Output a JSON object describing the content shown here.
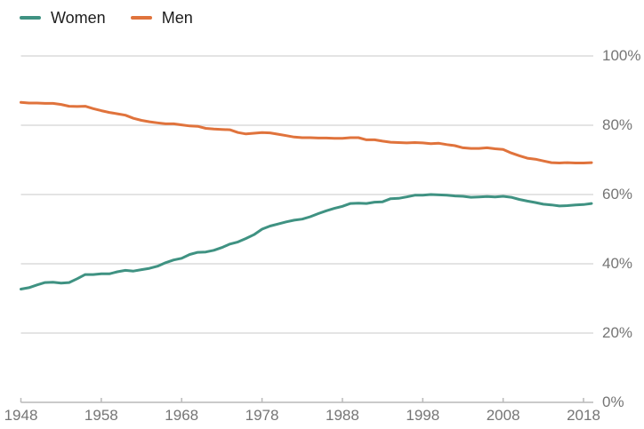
{
  "legend": {
    "items": [
      {
        "label": "Women",
        "swatch": "teal-line-swatch"
      },
      {
        "label": "Men",
        "swatch": "orange-line-swatch"
      }
    ]
  },
  "colors": {
    "women": "#3f9282",
    "men": "#e0733c",
    "gridline": "#dcdcdc",
    "axis": "#b9b9b9",
    "tick_label": "#757575",
    "legend_text": "#1d1d1d",
    "background": "#ffffff"
  },
  "chart_data": {
    "type": "line",
    "title": "",
    "xlabel": "",
    "ylabel": "",
    "grid": "horizontal",
    "legend_position": "top-left",
    "ylim": [
      0,
      100
    ],
    "xlim": [
      1948,
      2019
    ],
    "yticks": [
      "100%",
      "80%",
      "60%",
      "40%",
      "20%",
      "0%"
    ],
    "ytick_values": [
      100,
      80,
      60,
      40,
      20,
      0
    ],
    "xticks": [
      "1948",
      "1958",
      "1968",
      "1978",
      "1988",
      "1998",
      "2008",
      "2018"
    ],
    "xtick_values": [
      1948,
      1958,
      1968,
      1978,
      1988,
      1998,
      2008,
      2018
    ],
    "x": [
      1948,
      1949,
      1950,
      1951,
      1952,
      1953,
      1954,
      1955,
      1956,
      1957,
      1958,
      1959,
      1960,
      1961,
      1962,
      1963,
      1964,
      1965,
      1966,
      1967,
      1968,
      1969,
      1970,
      1971,
      1972,
      1973,
      1974,
      1975,
      1976,
      1977,
      1978,
      1979,
      1980,
      1981,
      1982,
      1983,
      1984,
      1985,
      1986,
      1987,
      1988,
      1989,
      1990,
      1991,
      1992,
      1993,
      1994,
      1995,
      1996,
      1997,
      1998,
      1999,
      2000,
      2001,
      2002,
      2003,
      2004,
      2005,
      2006,
      2007,
      2008,
      2009,
      2010,
      2011,
      2012,
      2013,
      2014,
      2015,
      2016,
      2017,
      2018,
      2019
    ],
    "series": [
      {
        "name": "Women",
        "color": "#3f9282",
        "values": [
          32.7,
          33.1,
          33.9,
          34.6,
          34.7,
          34.4,
          34.6,
          35.7,
          36.9,
          36.9,
          37.1,
          37.1,
          37.7,
          38.1,
          37.9,
          38.3,
          38.7,
          39.3,
          40.3,
          41.1,
          41.6,
          42.7,
          43.3,
          43.4,
          43.9,
          44.7,
          45.7,
          46.3,
          47.3,
          48.4,
          50.0,
          50.9,
          51.5,
          52.1,
          52.6,
          52.9,
          53.6,
          54.5,
          55.3,
          56.0,
          56.6,
          57.4,
          57.5,
          57.4,
          57.8,
          57.9,
          58.8,
          58.9,
          59.3,
          59.8,
          59.8,
          60.0,
          59.9,
          59.8,
          59.6,
          59.5,
          59.2,
          59.3,
          59.4,
          59.3,
          59.5,
          59.2,
          58.6,
          58.1,
          57.7,
          57.2,
          57.0,
          56.7,
          56.8,
          57.0,
          57.1,
          57.4
        ]
      },
      {
        "name": "Men",
        "color": "#e0733c",
        "values": [
          86.6,
          86.4,
          86.4,
          86.3,
          86.3,
          86.0,
          85.5,
          85.4,
          85.5,
          84.8,
          84.2,
          83.7,
          83.3,
          82.9,
          82.0,
          81.4,
          81.0,
          80.7,
          80.4,
          80.4,
          80.1,
          79.8,
          79.7,
          79.1,
          78.9,
          78.8,
          78.7,
          77.9,
          77.5,
          77.7,
          77.9,
          77.8,
          77.4,
          77.0,
          76.6,
          76.4,
          76.4,
          76.3,
          76.3,
          76.2,
          76.2,
          76.4,
          76.4,
          75.8,
          75.8,
          75.4,
          75.1,
          75.0,
          74.9,
          75.0,
          74.9,
          74.7,
          74.8,
          74.4,
          74.1,
          73.5,
          73.3,
          73.3,
          73.5,
          73.2,
          73.0,
          72.0,
          71.2,
          70.5,
          70.2,
          69.7,
          69.2,
          69.1,
          69.2,
          69.1,
          69.1,
          69.2
        ]
      }
    ]
  }
}
